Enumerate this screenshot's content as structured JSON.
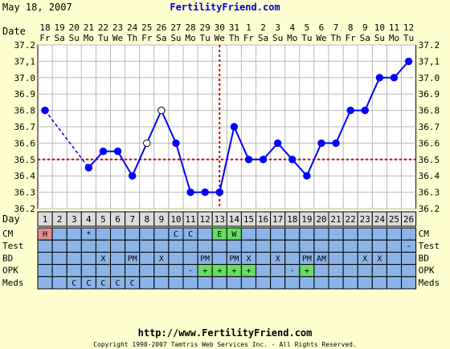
{
  "header": {
    "date": "May 18, 2007",
    "site": "FertilityFriend.com"
  },
  "footer": {
    "url": "http://www.FertilityFriend.com",
    "copyright": "Copyright 1998-2007 Tamtris Web Services Inc. - All Rights Reserved."
  },
  "colors": {
    "background": "#fffed0",
    "plot_bg": "#ffffff",
    "grid": "#b8b8b8",
    "line": "#0000ff",
    "coverline": "#cc0000",
    "row_bg": "#8cb4e8",
    "h_badge": "#e09090",
    "green_badge": "#66dd66"
  },
  "chart_data": {
    "type": "line",
    "title": "",
    "xlabel": "",
    "ylabel": "",
    "ylim": [
      36.2,
      37.2
    ],
    "y_ticks": [
      "37.2",
      "37,1",
      "37.0",
      "36.9",
      "36.8",
      "36.7",
      "36.6",
      "36.5",
      "36.4",
      "36.3",
      "36.2"
    ],
    "date_row_label": "Date",
    "day_row_label": "Day",
    "dates": [
      "18",
      "19",
      "20",
      "21",
      "22",
      "23",
      "24",
      "25",
      "26",
      "27",
      "28",
      "29",
      "30",
      "31",
      "1",
      "2",
      "3",
      "4",
      "5",
      "6",
      "7",
      "8",
      "9",
      "10",
      "11",
      "12"
    ],
    "weekdays": [
      "Fr",
      "Sa",
      "Su",
      "Mo",
      "Tu",
      "We",
      "Th",
      "Fr",
      "Sa",
      "Su",
      "Mo",
      "Tu",
      "We",
      "Th",
      "Fr",
      "Sa",
      "Su",
      "Mo",
      "Tu",
      "We",
      "Th",
      "Fr",
      "Sa",
      "Su",
      "Mo",
      "Tu"
    ],
    "days": [
      "1",
      "2",
      "3",
      "4",
      "5",
      "6",
      "7",
      "8",
      "9",
      "10",
      "11",
      "12",
      "13",
      "14",
      "15",
      "16",
      "17",
      "18",
      "19",
      "20",
      "21",
      "22",
      "23",
      "24",
      "25",
      "26"
    ],
    "series": [
      {
        "values": [
          36.8,
          null,
          null,
          36.45,
          36.55,
          36.55,
          36.4,
          36.6,
          36.8,
          36.6,
          36.3,
          36.3,
          36.3,
          36.7,
          36.5,
          36.5,
          36.6,
          36.5,
          36.4,
          36.6,
          36.6,
          36.8,
          36.8,
          37.0,
          37.0,
          37.1
        ],
        "open_markers": [
          8,
          9
        ],
        "dashed_segments": [
          [
            1,
            4
          ]
        ]
      }
    ],
    "coverline": 36.5,
    "ovulation_day": 13,
    "rows": [
      {
        "label": "CM",
        "cells": {
          "1": "H",
          "4": "*",
          "10": "C",
          "11": "C",
          "13": "E",
          "14": "W"
        }
      },
      {
        "label": "Test",
        "cells": {
          "26": "-"
        }
      },
      {
        "label": "BD",
        "cells": {
          "5": "X",
          "7": "PM",
          "9": "X",
          "12": "PM",
          "14": "PM",
          "15": "X",
          "17": "X",
          "19": "PM",
          "20": "AM",
          "23": "X",
          "24": "X"
        }
      },
      {
        "label": "OPK",
        "cells": {
          "11": "-",
          "12": "+",
          "13": "+",
          "14": "+",
          "15": "+",
          "18": "-",
          "19": "+"
        }
      },
      {
        "label": "Meds",
        "cells": {
          "3": "C",
          "4": "C",
          "5": "C",
          "6": "C",
          "7": "C"
        }
      }
    ],
    "green_cells": {
      "CM": [
        "13",
        "14"
      ],
      "OPK": [
        "12",
        "13",
        "14",
        "15",
        "19"
      ]
    },
    "pink_cells": {
      "CM": [
        "1"
      ]
    }
  }
}
